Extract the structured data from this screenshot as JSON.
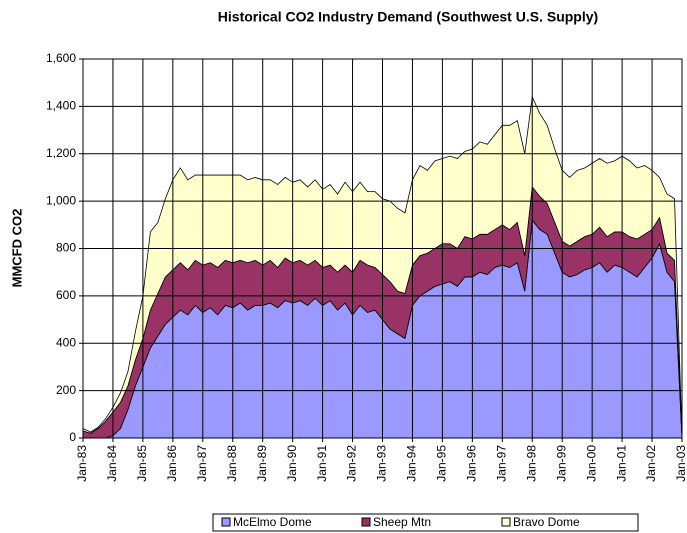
{
  "chart_data": {
    "type": "stacked_area",
    "title": "Historical CO2 Industry Demand (Southwest U.S. Supply)",
    "y_label": "MMCFD CO2",
    "categories": [
      "Jan-83",
      null,
      null,
      null,
      "Jan-84",
      null,
      null,
      null,
      "Jan-85",
      null,
      null,
      null,
      "Jan-86",
      null,
      null,
      null,
      "Jan-87",
      null,
      null,
      null,
      "Jan-88",
      null,
      null,
      null,
      "Jan-89",
      null,
      null,
      null,
      "Jan-90",
      null,
      null,
      null,
      "Jan-91",
      null,
      null,
      null,
      "Jan-92",
      null,
      null,
      null,
      "Jan-93",
      null,
      null,
      null,
      "Jan-94",
      null,
      null,
      null,
      "Jan-95",
      null,
      null,
      null,
      "Jan-96",
      null,
      null,
      null,
      "Jan-97",
      null,
      null,
      null,
      "Jan-98",
      null,
      null,
      null,
      "Jan-99",
      null,
      null,
      null,
      "Jan-00",
      null,
      null,
      null,
      "Jan-01",
      null,
      null,
      null,
      "Jan-02",
      null,
      null,
      null,
      "Jan-03"
    ],
    "series": [
      {
        "name": "McElmo Dome",
        "color": "#9999ff",
        "values": [
          0,
          0,
          0,
          0,
          10,
          40,
          120,
          220,
          300,
          380,
          430,
          480,
          510,
          540,
          520,
          560,
          530,
          550,
          520,
          560,
          550,
          570,
          540,
          560,
          560,
          570,
          550,
          580,
          570,
          580,
          560,
          590,
          560,
          580,
          540,
          570,
          520,
          560,
          530,
          540,
          500,
          460,
          440,
          420,
          560,
          600,
          620,
          640,
          650,
          660,
          640,
          680,
          680,
          700,
          690,
          720,
          730,
          720,
          740,
          620,
          920,
          880,
          860,
          780,
          700,
          680,
          690,
          710,
          720,
          740,
          700,
          730,
          720,
          700,
          680,
          720,
          760,
          820,
          700,
          660,
          0
        ]
      },
      {
        "name": "Sheep Mtn",
        "color": "#993366",
        "values": [
          30,
          20,
          40,
          70,
          100,
          110,
          100,
          110,
          120,
          160,
          180,
          200,
          200,
          200,
          190,
          190,
          200,
          190,
          200,
          190,
          190,
          180,
          200,
          190,
          170,
          180,
          170,
          180,
          170,
          170,
          170,
          160,
          160,
          150,
          160,
          160,
          180,
          190,
          200,
          180,
          190,
          200,
          180,
          190,
          170,
          170,
          160,
          160,
          170,
          160,
          160,
          170,
          160,
          160,
          170,
          160,
          170,
          160,
          170,
          150,
          140,
          140,
          130,
          130,
          130,
          130,
          140,
          140,
          140,
          150,
          150,
          140,
          150,
          150,
          160,
          140,
          120,
          110,
          80,
          90,
          0
        ]
      },
      {
        "name": "Bravo Dome",
        "color": "#ffffcc",
        "values": [
          10,
          5,
          5,
          10,
          20,
          40,
          60,
          120,
          180,
          330,
          300,
          330,
          380,
          400,
          380,
          360,
          380,
          370,
          390,
          360,
          370,
          360,
          350,
          350,
          360,
          340,
          350,
          340,
          340,
          340,
          330,
          340,
          330,
          340,
          330,
          350,
          340,
          330,
          310,
          320,
          320,
          340,
          350,
          340,
          360,
          380,
          350,
          370,
          360,
          370,
          380,
          360,
          380,
          390,
          380,
          400,
          420,
          440,
          430,
          430,
          380,
          350,
          330,
          310,
          300,
          290,
          300,
          290,
          300,
          290,
          310,
          300,
          320,
          320,
          300,
          290,
          250,
          170,
          250,
          260,
          0
        ]
      }
    ],
    "ylim": [
      0,
      1600
    ],
    "yticks": [
      0,
      200,
      400,
      600,
      800,
      {
        "value": 1000,
        "label": "1,000"
      },
      {
        "value": 1200,
        "label": "1,200"
      },
      {
        "value": 1400,
        "label": "1,400"
      },
      {
        "value": 1600,
        "label": "1,600"
      }
    ],
    "grid": true
  }
}
